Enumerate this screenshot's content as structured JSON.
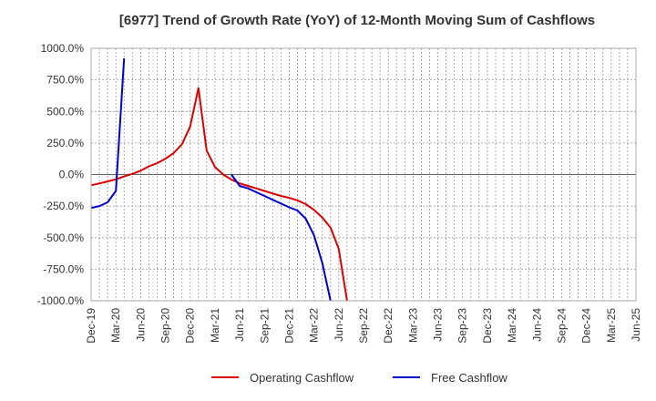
{
  "chart_data": {
    "type": "line",
    "title": "[6977]  Trend of Growth Rate (YoY) of 12-Month Moving Sum of Cashflows",
    "xlabel": "",
    "ylabel": "",
    "ylim": [
      -1000,
      1000
    ],
    "y_ticks": [
      1000,
      750,
      500,
      250,
      0,
      -250,
      -500,
      -750,
      -1000
    ],
    "y_tick_labels": [
      "1000.0%",
      "750.0%",
      "500.0%",
      "250.0%",
      "0.0%",
      "-250.0%",
      "-500.0%",
      "-750.0%",
      "-1000.0%"
    ],
    "x_range": [
      "2019-12",
      "2025-06"
    ],
    "x_ticks": [
      "Dec-19",
      "Mar-20",
      "Jun-20",
      "Sep-20",
      "Dec-20",
      "Mar-21",
      "Jun-21",
      "Sep-21",
      "Dec-21",
      "Mar-22",
      "Jun-22",
      "Sep-22",
      "Dec-22",
      "Mar-23",
      "Jun-23",
      "Sep-23",
      "Dec-23",
      "Mar-24",
      "Jun-24",
      "Sep-24",
      "Dec-24",
      "Mar-25",
      "Jun-25"
    ],
    "grid": true,
    "legend_position": "bottom",
    "series": [
      {
        "name": "Operating Cashflow",
        "color": "#dd0000",
        "points": [
          [
            "2019-12",
            -85
          ],
          [
            "2020-01",
            -70
          ],
          [
            "2020-02",
            -55
          ],
          [
            "2020-03",
            -38
          ],
          [
            "2020-04",
            -15
          ],
          [
            "2020-05",
            5
          ],
          [
            "2020-06",
            30
          ],
          [
            "2020-07",
            65
          ],
          [
            "2020-08",
            90
          ],
          [
            "2020-09",
            125
          ],
          [
            "2020-10",
            170
          ],
          [
            "2020-11",
            240
          ],
          [
            "2020-12",
            380
          ],
          [
            "2021-01",
            685
          ],
          [
            "2021-02",
            190
          ],
          [
            "2021-03",
            60
          ],
          [
            "2021-04",
            0
          ],
          [
            "2021-05",
            -40
          ],
          [
            "2021-06",
            -70
          ],
          [
            "2021-07",
            -90
          ],
          [
            "2021-08",
            -110
          ],
          [
            "2021-09",
            -130
          ],
          [
            "2021-10",
            -150
          ],
          [
            "2021-11",
            -170
          ],
          [
            "2021-12",
            -185
          ],
          [
            "2022-01",
            -205
          ],
          [
            "2022-02",
            -235
          ],
          [
            "2022-03",
            -280
          ],
          [
            "2022-04",
            -340
          ],
          [
            "2022-05",
            -420
          ],
          [
            "2022-06",
            -590
          ],
          [
            "2022-07",
            -1000
          ]
        ]
      },
      {
        "name": "Free Cashflow",
        "color": "#0000cc",
        "segments": [
          [
            [
              "2019-12",
              -265
            ],
            [
              "2020-01",
              -250
            ],
            [
              "2020-02",
              -220
            ],
            [
              "2020-03",
              -130
            ],
            [
              "2020-04",
              920
            ]
          ],
          [
            [
              "2021-05",
              0
            ],
            [
              "2021-06",
              -90
            ],
            [
              "2021-07",
              -110
            ],
            [
              "2021-08",
              -140
            ],
            [
              "2021-09",
              -170
            ],
            [
              "2021-10",
              -200
            ],
            [
              "2021-11",
              -230
            ],
            [
              "2021-12",
              -260
            ],
            [
              "2022-01",
              -285
            ],
            [
              "2022-02",
              -350
            ],
            [
              "2022-03",
              -480
            ],
            [
              "2022-04",
              -700
            ],
            [
              "2022-05",
              -1000
            ]
          ]
        ]
      }
    ]
  }
}
